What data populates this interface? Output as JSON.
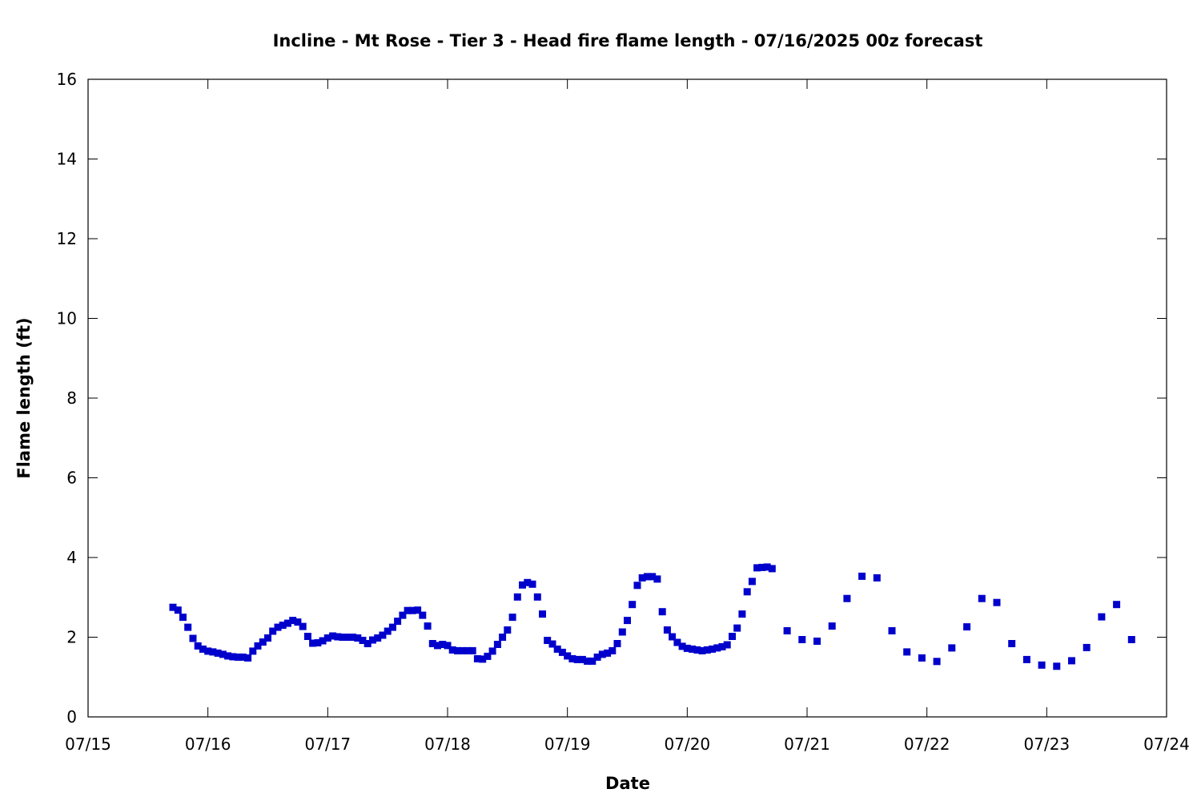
{
  "chart_data": {
    "type": "scatter",
    "title": "Incline - Mt Rose - Tier 3 - Head fire flame length - 07/16/2025 00z forecast",
    "xlabel": "Date",
    "ylabel": "Flame length (ft)",
    "xlim": [
      "2025-07-15",
      "2025-07-24"
    ],
    "ylim": [
      0,
      16
    ],
    "x_tick_labels": [
      "07/15",
      "07/16",
      "07/17",
      "07/18",
      "07/19",
      "07/20",
      "07/21",
      "07/22",
      "07/23",
      "07/24"
    ],
    "y_tick_labels": [
      "0",
      "2",
      "4",
      "6",
      "8",
      "10",
      "12",
      "14",
      "16"
    ],
    "grid": false,
    "marker_color": "#0000cc",
    "series": [
      {
        "x": [
          "2025-07-15 17:00",
          "2025-07-15 18:00",
          "2025-07-15 19:00",
          "2025-07-15 20:00",
          "2025-07-15 21:00",
          "2025-07-15 22:00",
          "2025-07-15 23:00",
          "2025-07-16 00:00",
          "2025-07-16 01:00",
          "2025-07-16 02:00",
          "2025-07-16 03:00",
          "2025-07-16 04:00",
          "2025-07-16 05:00",
          "2025-07-16 06:00",
          "2025-07-16 07:00",
          "2025-07-16 08:00",
          "2025-07-16 09:00",
          "2025-07-16 10:00",
          "2025-07-16 11:00",
          "2025-07-16 12:00",
          "2025-07-16 13:00",
          "2025-07-16 14:00",
          "2025-07-16 15:00",
          "2025-07-16 16:00",
          "2025-07-16 17:00",
          "2025-07-16 18:00",
          "2025-07-16 19:00",
          "2025-07-16 20:00",
          "2025-07-16 21:00",
          "2025-07-16 22:00",
          "2025-07-16 23:00",
          "2025-07-17 00:00",
          "2025-07-17 01:00",
          "2025-07-17 02:00",
          "2025-07-17 03:00",
          "2025-07-17 04:00",
          "2025-07-17 05:00",
          "2025-07-17 06:00",
          "2025-07-17 07:00",
          "2025-07-17 08:00",
          "2025-07-17 09:00",
          "2025-07-17 10:00",
          "2025-07-17 11:00",
          "2025-07-17 12:00",
          "2025-07-17 13:00",
          "2025-07-17 14:00",
          "2025-07-17 15:00",
          "2025-07-17 16:00",
          "2025-07-17 17:00",
          "2025-07-17 18:00",
          "2025-07-17 19:00",
          "2025-07-17 20:00",
          "2025-07-17 21:00",
          "2025-07-17 22:00",
          "2025-07-17 23:00",
          "2025-07-18 00:00",
          "2025-07-18 01:00",
          "2025-07-18 02:00",
          "2025-07-18 03:00",
          "2025-07-18 04:00",
          "2025-07-18 05:00",
          "2025-07-18 06:00",
          "2025-07-18 07:00",
          "2025-07-18 08:00",
          "2025-07-18 09:00",
          "2025-07-18 10:00",
          "2025-07-18 11:00",
          "2025-07-18 12:00",
          "2025-07-18 13:00",
          "2025-07-18 14:00",
          "2025-07-18 15:00",
          "2025-07-18 16:00",
          "2025-07-18 17:00",
          "2025-07-18 18:00",
          "2025-07-18 19:00",
          "2025-07-18 20:00",
          "2025-07-18 21:00",
          "2025-07-18 22:00",
          "2025-07-18 23:00",
          "2025-07-19 00:00",
          "2025-07-19 01:00",
          "2025-07-19 02:00",
          "2025-07-19 03:00",
          "2025-07-19 04:00",
          "2025-07-19 05:00",
          "2025-07-19 06:00",
          "2025-07-19 07:00",
          "2025-07-19 08:00",
          "2025-07-19 09:00",
          "2025-07-19 10:00",
          "2025-07-19 11:00",
          "2025-07-19 12:00",
          "2025-07-19 13:00",
          "2025-07-19 14:00",
          "2025-07-19 15:00",
          "2025-07-19 16:00",
          "2025-07-19 17:00",
          "2025-07-19 18:00",
          "2025-07-19 19:00",
          "2025-07-19 20:00",
          "2025-07-19 21:00",
          "2025-07-19 22:00",
          "2025-07-19 23:00",
          "2025-07-20 00:00",
          "2025-07-20 01:00",
          "2025-07-20 02:00",
          "2025-07-20 03:00",
          "2025-07-20 04:00",
          "2025-07-20 05:00",
          "2025-07-20 06:00",
          "2025-07-20 07:00",
          "2025-07-20 08:00",
          "2025-07-20 09:00",
          "2025-07-20 10:00",
          "2025-07-20 11:00",
          "2025-07-20 12:00",
          "2025-07-20 13:00",
          "2025-07-20 14:00",
          "2025-07-20 15:00",
          "2025-07-20 16:00",
          "2025-07-20 17:00",
          "2025-07-20 20:00",
          "2025-07-20 23:00",
          "2025-07-21 02:00",
          "2025-07-21 05:00",
          "2025-07-21 08:00",
          "2025-07-21 11:00",
          "2025-07-21 14:00",
          "2025-07-21 17:00",
          "2025-07-21 20:00",
          "2025-07-21 23:00",
          "2025-07-22 02:00",
          "2025-07-22 05:00",
          "2025-07-22 08:00",
          "2025-07-22 11:00",
          "2025-07-22 14:00",
          "2025-07-22 17:00",
          "2025-07-22 20:00",
          "2025-07-22 23:00",
          "2025-07-23 02:00",
          "2025-07-23 05:00",
          "2025-07-23 08:00",
          "2025-07-23 11:00",
          "2025-07-23 14:00",
          "2025-07-23 17:00"
        ],
        "y": [
          2.75,
          2.68,
          2.5,
          2.25,
          1.97,
          1.78,
          1.7,
          1.65,
          1.63,
          1.6,
          1.57,
          1.53,
          1.51,
          1.5,
          1.5,
          1.48,
          1.65,
          1.78,
          1.88,
          1.98,
          2.15,
          2.25,
          2.3,
          2.35,
          2.42,
          2.38,
          2.27,
          2.02,
          1.85,
          1.86,
          1.91,
          1.98,
          2.03,
          2.01,
          2.0,
          2.0,
          2.0,
          1.98,
          1.92,
          1.84,
          1.93,
          1.98,
          2.05,
          2.15,
          2.25,
          2.4,
          2.55,
          2.67,
          2.67,
          2.68,
          2.55,
          2.28,
          1.84,
          1.79,
          1.82,
          1.79,
          1.68,
          1.66,
          1.66,
          1.66,
          1.66,
          1.46,
          1.45,
          1.52,
          1.65,
          1.82,
          2.0,
          2.18,
          2.5,
          3.01,
          3.31,
          3.37,
          3.33,
          3.01,
          2.58,
          1.92,
          1.83,
          1.7,
          1.62,
          1.53,
          1.46,
          1.44,
          1.44,
          1.4,
          1.4,
          1.5,
          1.57,
          1.6,
          1.66,
          1.84,
          2.13,
          2.42,
          2.82,
          3.3,
          3.49,
          3.52,
          3.52,
          3.46,
          2.64,
          2.18,
          2.01,
          1.87,
          1.77,
          1.72,
          1.7,
          1.68,
          1.66,
          1.68,
          1.7,
          1.73,
          1.76,
          1.81,
          2.02,
          2.23,
          2.58,
          3.14,
          3.4,
          3.74,
          3.75,
          3.76,
          3.72,
          2.16,
          1.94,
          1.9,
          2.28,
          2.97,
          3.53,
          3.49,
          2.16,
          1.63,
          1.48,
          1.39,
          1.73,
          2.26,
          2.97,
          2.87,
          1.84,
          1.44,
          1.3,
          1.27,
          1.41,
          1.74,
          2.51,
          2.82,
          1.94
        ]
      }
    ]
  }
}
